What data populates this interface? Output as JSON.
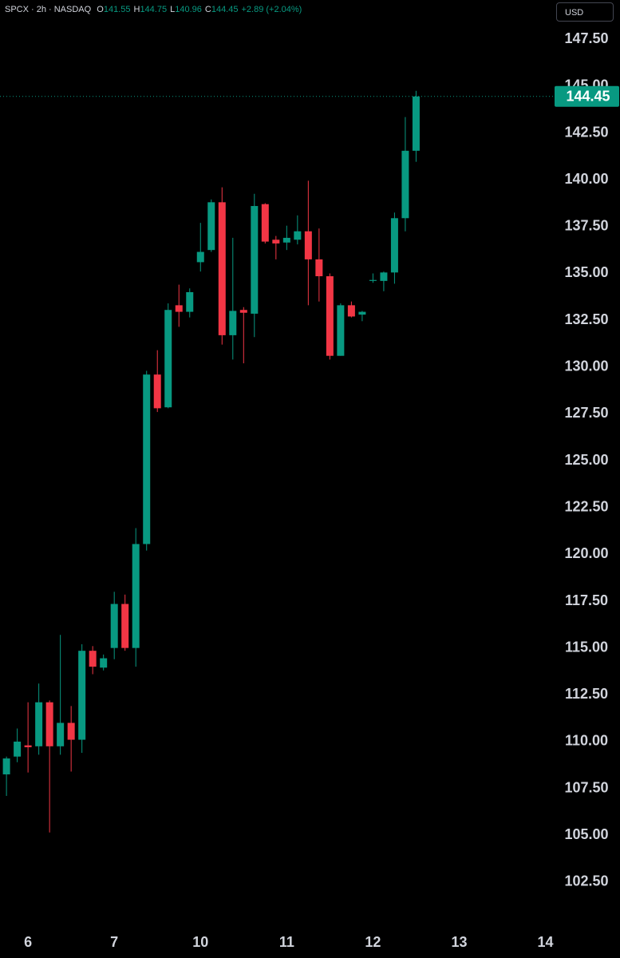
{
  "header": {
    "symbol": "SPCX · 2h · NASDAQ",
    "items": [
      {
        "label": "O",
        "value": "141.55"
      },
      {
        "label": "H",
        "value": "144.75"
      },
      {
        "label": "L",
        "value": "140.96"
      },
      {
        "label": "C",
        "value": "144.45"
      }
    ],
    "change": "+2.89 (+2.04%)"
  },
  "currency_button": "USD",
  "chart_data": {
    "type": "candlestick",
    "up_color": "#089981",
    "down_color": "#f23645",
    "open": [
      108.25,
      109.2,
      109.8,
      109.75,
      112.1,
      109.75,
      111.0,
      110.1,
      114.85,
      113.95,
      115.0,
      117.35,
      115.0,
      120.55,
      129.6,
      127.85,
      133.3,
      132.95,
      135.6,
      136.25,
      138.8,
      131.7,
      133.05,
      132.85,
      138.7,
      136.8,
      136.65,
      136.8,
      137.25,
      135.75,
      134.85,
      130.6,
      133.3,
      132.8,
      134.6,
      134.6,
      135.05,
      137.95,
      141.55
    ],
    "high": [
      109.2,
      110.7,
      112.1,
      113.1,
      112.2,
      115.7,
      111.9,
      115.2,
      115.1,
      114.65,
      118.0,
      117.85,
      121.4,
      129.8,
      130.9,
      133.4,
      134.4,
      134.2,
      137.7,
      138.95,
      139.6,
      136.9,
      133.2,
      139.25,
      138.75,
      137.0,
      137.55,
      138.1,
      139.95,
      137.4,
      135.0,
      133.4,
      133.5,
      133.0,
      135.0,
      135.1,
      138.25,
      143.35,
      144.75
    ],
    "low": [
      107.1,
      108.9,
      108.35,
      109.3,
      105.15,
      109.3,
      108.4,
      109.4,
      113.6,
      113.8,
      114.4,
      114.85,
      114.0,
      120.2,
      127.6,
      127.8,
      132.15,
      132.65,
      135.1,
      136.15,
      131.2,
      130.4,
      130.2,
      131.6,
      136.6,
      135.75,
      136.25,
      136.55,
      133.3,
      133.5,
      130.4,
      130.6,
      132.65,
      132.45,
      134.5,
      134.05,
      134.45,
      137.25,
      140.96
    ],
    "close": [
      109.1,
      110.0,
      109.7,
      112.1,
      109.75,
      111.0,
      110.1,
      114.85,
      114.0,
      114.45,
      117.35,
      115.0,
      120.55,
      129.6,
      127.8,
      133.05,
      132.95,
      134.0,
      136.15,
      138.8,
      131.7,
      133.0,
      132.9,
      138.6,
      136.7,
      136.6,
      136.9,
      137.25,
      135.75,
      134.85,
      130.6,
      133.3,
      132.7,
      132.95,
      134.65,
      135.05,
      137.95,
      141.55,
      144.45
    ],
    "xlim": [
      -0.6,
      50.7
    ],
    "xticks": [
      {
        "value": 2,
        "label": "6"
      },
      {
        "value": 10,
        "label": "7"
      },
      {
        "value": 18,
        "label": "10"
      },
      {
        "value": 26,
        "label": "11"
      },
      {
        "value": 34,
        "label": "12"
      },
      {
        "value": 42,
        "label": "13"
      },
      {
        "value": 50,
        "label": "14"
      }
    ],
    "ylim": [
      100.15,
      149.6
    ],
    "yticks": [
      {
        "value": 102.5,
        "label": "102.50"
      },
      {
        "value": 105,
        "label": "105.00"
      },
      {
        "value": 107.5,
        "label": "107.50"
      },
      {
        "value": 110,
        "label": "110.00"
      },
      {
        "value": 112.5,
        "label": "112.50"
      },
      {
        "value": 115,
        "label": "115.00"
      },
      {
        "value": 117.5,
        "label": "117.50"
      },
      {
        "value": 120,
        "label": "120.00"
      },
      {
        "value": 122.5,
        "label": "122.50"
      },
      {
        "value": 125,
        "label": "125.00"
      },
      {
        "value": 127.5,
        "label": "127.50"
      },
      {
        "value": 130,
        "label": "130.00"
      },
      {
        "value": 132.5,
        "label": "132.50"
      },
      {
        "value": 135,
        "label": "135.00"
      },
      {
        "value": 137.5,
        "label": "137.50"
      },
      {
        "value": 140,
        "label": "140.00"
      },
      {
        "value": 142.5,
        "label": "142.50"
      },
      {
        "value": 145,
        "label": "145.00"
      },
      {
        "value": 147.5,
        "label": "147.50"
      }
    ],
    "last_price_line": true
  }
}
